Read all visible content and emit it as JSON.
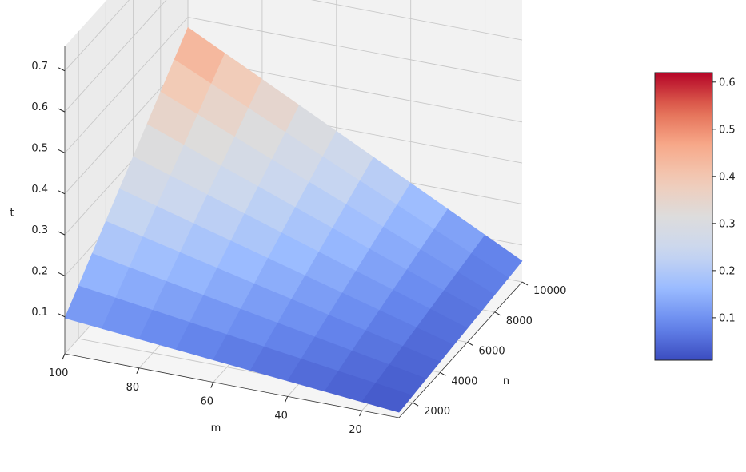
{
  "chart_data": {
    "type": "surface3d",
    "title": "",
    "xlabel": "n",
    "ylabel": "m",
    "zlabel": "t",
    "x": [
      1000,
      2000,
      3000,
      4000,
      5000,
      6000,
      7000,
      8000,
      9000,
      10000
    ],
    "y": [
      10,
      20,
      30,
      40,
      50,
      60,
      70,
      80,
      90,
      100
    ],
    "xlim": [
      1000,
      10000
    ],
    "ylim": [
      10,
      100
    ],
    "zlim": [
      0.01,
      0.76
    ],
    "x_ticks": [
      2000,
      4000,
      6000,
      8000,
      10000
    ],
    "y_ticks": [
      20,
      40,
      60,
      80,
      100
    ],
    "z_ticks": [
      0.1,
      0.2,
      0.3,
      0.4,
      0.5,
      0.6,
      0.7
    ],
    "colormap": [
      "#3b4cc0",
      "#6788ee",
      "#9abbff",
      "#c9d7f0",
      "#dddcdc",
      "#f2cbb7",
      "#f7a889",
      "#e26952",
      "#b40426"
    ],
    "colorbar": {
      "min": 0.01,
      "max": 0.62,
      "ticks": [
        0.1,
        0.2,
        0.3,
        0.4,
        0.5,
        0.6
      ]
    },
    "grid": true,
    "view": {
      "elev": 22,
      "azim": -145
    }
  }
}
